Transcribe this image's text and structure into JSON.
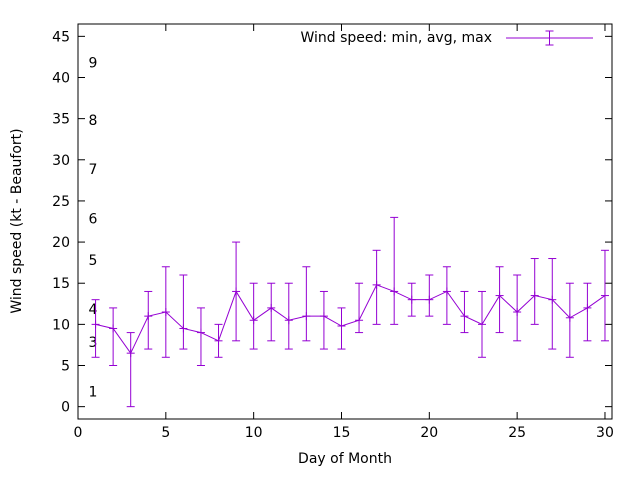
{
  "chart_data": {
    "type": "line",
    "subtype": "yerrorlines",
    "legend_label": "Wind speed: min, avg, max",
    "xlabel": "Day of Month",
    "ylabel": "Wind speed (kt - Beaufort)",
    "line_color": "#9400d3",
    "grid": false,
    "legend_position": "top-right-inside",
    "xlim": [
      0,
      30.4
    ],
    "ylim": [
      -1.5,
      46.5
    ],
    "x_ticks": [
      0,
      5,
      10,
      15,
      20,
      25,
      30
    ],
    "y_ticks": [
      0,
      5,
      10,
      15,
      20,
      25,
      30,
      35,
      40,
      45
    ],
    "beaufort_labels": [
      {
        "label": "1",
        "kt": 1
      },
      {
        "label": "3",
        "kt": 7
      },
      {
        "label": "4",
        "kt": 11
      },
      {
        "label": "5",
        "kt": 17
      },
      {
        "label": "6",
        "kt": 22
      },
      {
        "label": "7",
        "kt": 28
      },
      {
        "label": "8",
        "kt": 34
      },
      {
        "label": "9",
        "kt": 41
      }
    ],
    "x": [
      1,
      2,
      3,
      4,
      5,
      6,
      7,
      8,
      9,
      10,
      11,
      12,
      13,
      14,
      15,
      16,
      17,
      18,
      19,
      20,
      21,
      22,
      23,
      24,
      25,
      26,
      27,
      28,
      29,
      30
    ],
    "series": [
      {
        "name": "min",
        "values": [
          6,
          5,
          0,
          7,
          6,
          7,
          5,
          6,
          8,
          7,
          8,
          7,
          8,
          7,
          7,
          9,
          10,
          10,
          11,
          11,
          10,
          9,
          6,
          9,
          8,
          10,
          7,
          6,
          8,
          8
        ]
      },
      {
        "name": "avg",
        "values": [
          10,
          9.5,
          6.5,
          11,
          11.5,
          9.5,
          9,
          8,
          14,
          10.5,
          12,
          10.5,
          11,
          11,
          9.8,
          10.5,
          14.8,
          14,
          13,
          13,
          14,
          11,
          10,
          13.5,
          11.5,
          13.5,
          13,
          10.8,
          12,
          13.5
        ]
      },
      {
        "name": "max",
        "values": [
          13,
          12,
          9,
          14,
          17,
          16,
          12,
          10,
          20,
          15,
          15,
          15,
          17,
          14,
          12,
          15,
          19,
          23,
          15,
          16,
          17,
          14,
          14,
          17,
          16,
          18,
          18,
          15,
          15,
          19
        ]
      }
    ]
  }
}
